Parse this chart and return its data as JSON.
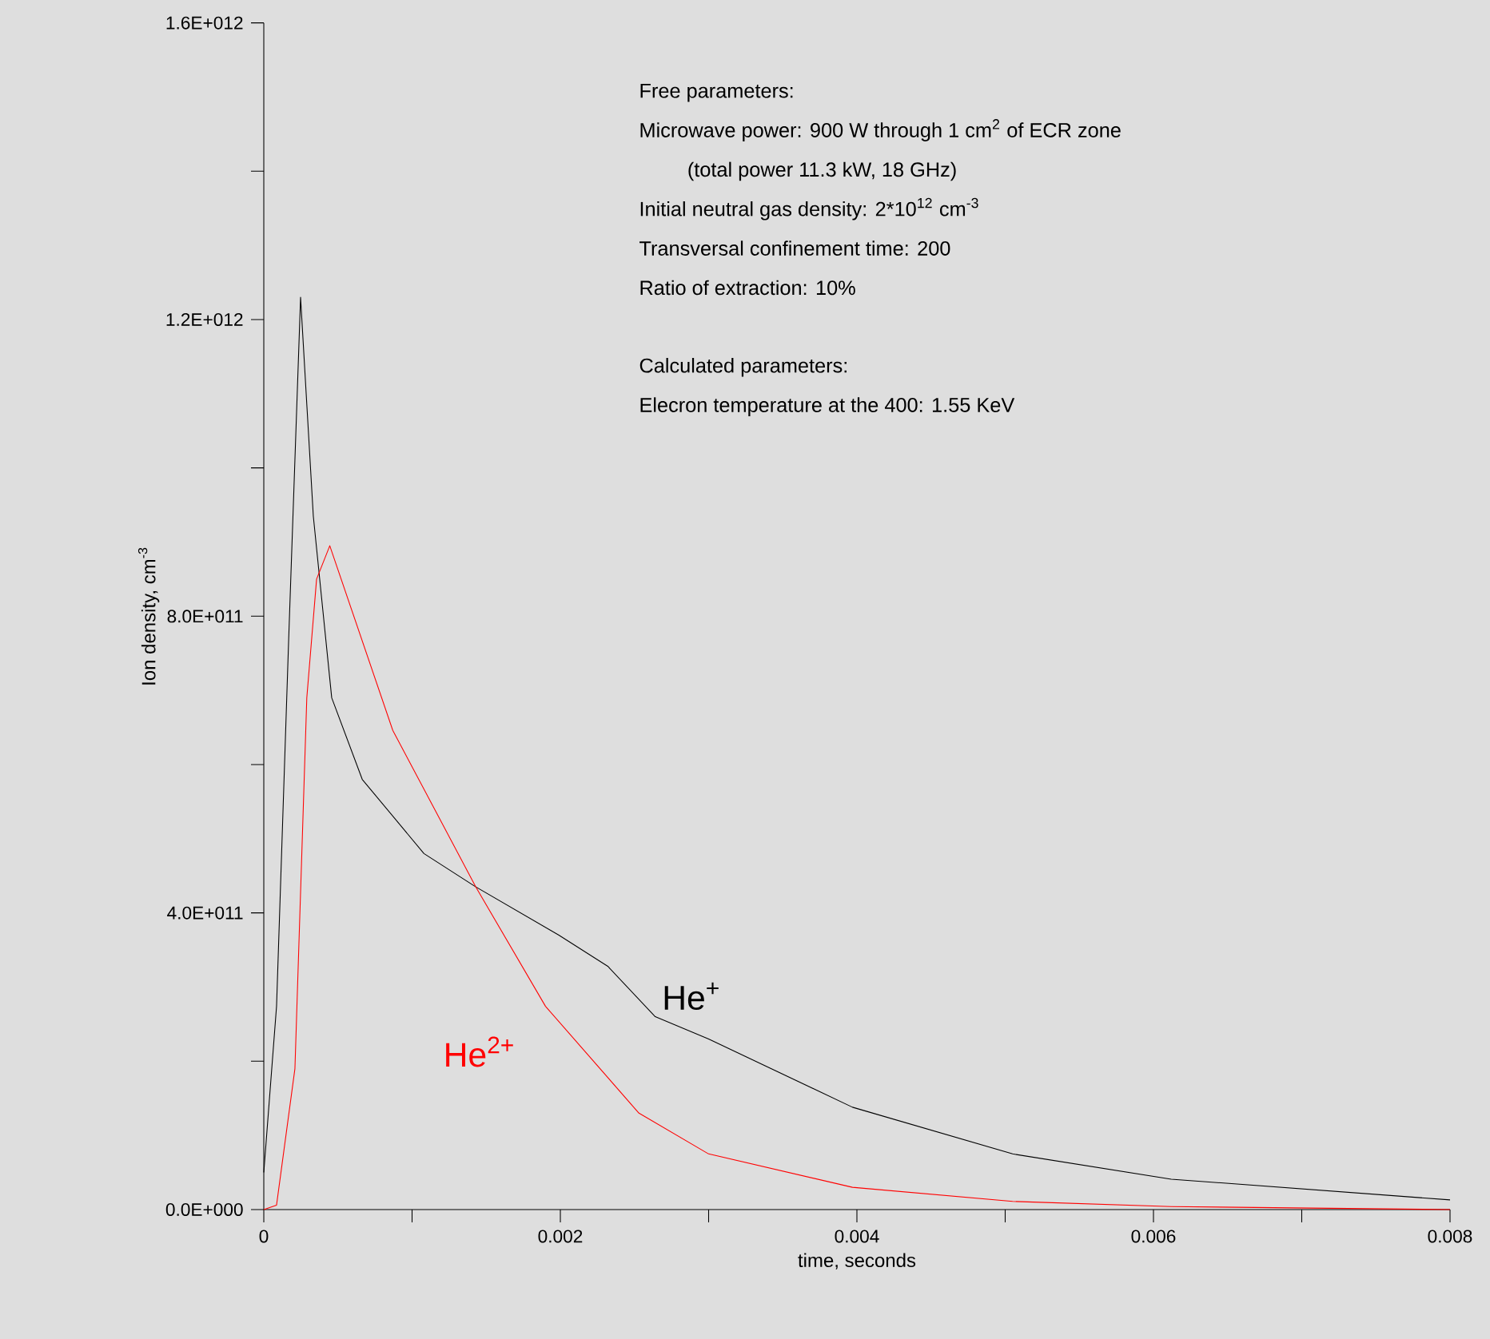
{
  "chart_data": {
    "type": "line",
    "xlabel": "time, seconds",
    "ylabel": "Ion density, cm$^{-3}$",
    "xlim": [
      0,
      0.008
    ],
    "ylim": [
      0,
      1600000000000
    ],
    "xticks": [
      0,
      {
        "value": 0.001,
        "label": null
      },
      0.002,
      {
        "value": 0.003,
        "label": null
      },
      0.004,
      {
        "value": 0.005,
        "label": null
      },
      0.006,
      {
        "value": 0.007,
        "label": null
      },
      0.008
    ],
    "yticks": [
      {
        "value": 0,
        "label": "0.0E+000"
      },
      {
        "value": 200000000000,
        "label": null
      },
      {
        "value": 400000000000,
        "label": "4.0E+011"
      },
      {
        "value": 600000000000,
        "label": null
      },
      {
        "value": 800000000000,
        "label": "8.0E+011"
      },
      {
        "value": 1000000000000,
        "label": null
      },
      {
        "value": 1200000000000,
        "label": "1.2E+012"
      },
      {
        "value": 1400000000000,
        "label": null
      },
      {
        "value": 1600000000000,
        "label": "1.6E+012"
      }
    ],
    "grid": false,
    "marker": "none",
    "line_style": "solid",
    "series": [
      {
        "name": "He$^{+}$",
        "color": "#000000",
        "x": [
          0,
          8.6e-05,
          0.000168,
          0.000248,
          0.000334,
          0.000458,
          0.000664,
          0.00108,
          0.00143,
          0.00199,
          0.00232,
          0.00264,
          0.003,
          0.00397,
          0.00505,
          0.00612,
          0.008
        ],
        "values": [
          50000000000,
          274000000000,
          770000000000,
          1230000000000,
          935000000000,
          690000000000,
          580000000000,
          480000000000,
          435000000000,
          370000000000,
          328000000000,
          260000000000,
          230000000000,
          138000000000,
          75000000000,
          41000000000,
          13000000000
        ]
      },
      {
        "name": "He$^{2+}$",
        "color": "#ff0000",
        "x": [
          0,
          8.6e-05,
          0.00021,
          0.00029,
          0.000356,
          0.000445,
          0.00087,
          0.00143,
          0.0019,
          0.00253,
          0.003,
          0.00397,
          0.00505,
          0.00612,
          0.008
        ],
        "values": [
          0,
          6000000000,
          190000000000,
          690000000000,
          850000000000,
          895000000000,
          646000000000,
          435000000000,
          274000000000,
          130000000000,
          75000000000,
          30000000000,
          11000000000,
          4000000000,
          0
        ]
      }
    ],
    "annotations": [
      "Free parameters:",
      "Microwave power: 900 W through 1 cm$^{2}$ of ECR zone",
      "     (total power 11.3 kW, 18 GHz)",
      "Initial neutral gas density: 2*10$^{12}$ cm$^{-3}$",
      "Transversal confinement time:  200",
      "Ratio of extraction: 10%",
      "Calculated parameters:",
      "Elecron temperature at the 400: 1.55 KeV"
    ]
  }
}
